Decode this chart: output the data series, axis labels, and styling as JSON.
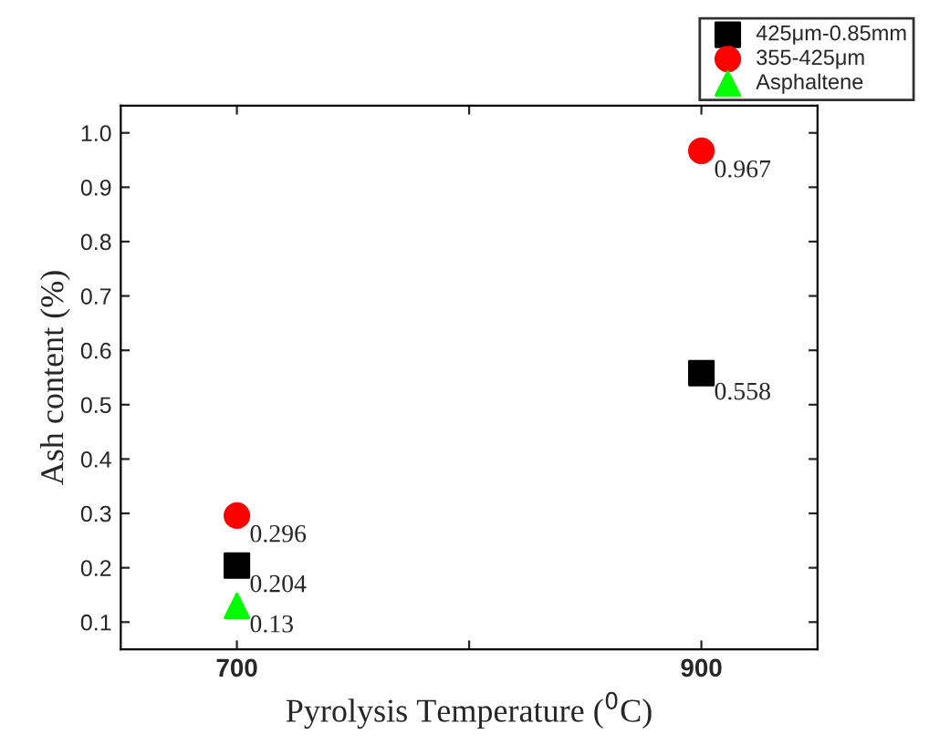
{
  "chart_data": {
    "type": "scatter",
    "xlabel": "Pyrolysis Temperature ($^{0}$C)",
    "ylabel": "Ash content (%)",
    "x": [
      700,
      900
    ],
    "series": [
      {
        "name": "425μm-0.85mm",
        "color": "#000000",
        "marker": "square",
        "values": [
          0.204,
          0.558
        ]
      },
      {
        "name": "355-425μm",
        "color": "#ff0000",
        "marker": "circle",
        "values": [
          0.296,
          0.967
        ]
      },
      {
        "name": "Asphaltene",
        "color": "#00ff00",
        "marker": "triangle",
        "values": [
          0.13,
          null
        ]
      }
    ],
    "xlim": [
      650,
      950
    ],
    "xticks": [
      700,
      {
        "value": 800,
        "label": null
      },
      900
    ],
    "ylim": [
      0.05,
      1.05
    ],
    "yticks": [
      0.1,
      0.2,
      0.3,
      0.4,
      0.5,
      0.6,
      0.7,
      0.8,
      0.9,
      {
        "value": 1,
        "label": "1.0"
      }
    ],
    "data_labels": true,
    "legend": "top right",
    "grid": false
  }
}
